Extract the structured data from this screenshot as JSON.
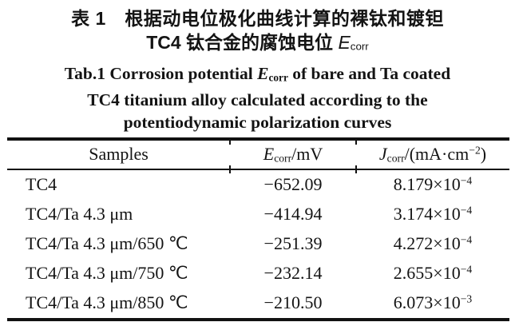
{
  "titles": {
    "zh_line1": "表 1　根据动电位极化曲线计算的裸钛和镀钽",
    "zh_line2_prefix": "TC4 钛合金的腐蚀电位 ",
    "zh_line2_symbol_italic": "E",
    "zh_line2_symbol_sub": "corr",
    "en_line1_pre": "Tab.1 Corrosion potential ",
    "en_symbol_italic": "E",
    "en_symbol_sub": "corr",
    "en_line1_post": " of bare and Ta coated",
    "en_line2": "TC4 titanium alloy calculated according to the",
    "en_line3": "potentiodynamic polarization curves"
  },
  "table": {
    "header": {
      "samples_label": "Samples",
      "e_symbol": "E",
      "e_sub": "corr",
      "e_unit": "/mV",
      "j_symbol": "J",
      "j_sub": "corr",
      "j_unit_pre": "/(mA·cm",
      "j_unit_sup": "−2",
      "j_unit_post": ")"
    },
    "rows": [
      {
        "sample": "TC4",
        "e_corr_mv": "−652.09",
        "j_mantissa": "8.179×10",
        "j_exponent": "−4"
      },
      {
        "sample": "TC4/Ta 4.3 μm",
        "e_corr_mv": "−414.94",
        "j_mantissa": "3.174×10",
        "j_exponent": "−4"
      },
      {
        "sample": "TC4/Ta 4.3 μm/650 ℃",
        "e_corr_mv": "−251.39",
        "j_mantissa": "4.272×10",
        "j_exponent": "−4"
      },
      {
        "sample": "TC4/Ta 4.3 μm/750 ℃",
        "e_corr_mv": "−232.14",
        "j_mantissa": "2.655×10",
        "j_exponent": "−4"
      },
      {
        "sample": "TC4/Ta 4.3 μm/850 ℃",
        "e_corr_mv": "−210.50",
        "j_mantissa": "6.073×10",
        "j_exponent": "−3"
      }
    ],
    "colors": {
      "rule": "#121212",
      "text": "#141414",
      "background": "#ffffff"
    }
  }
}
